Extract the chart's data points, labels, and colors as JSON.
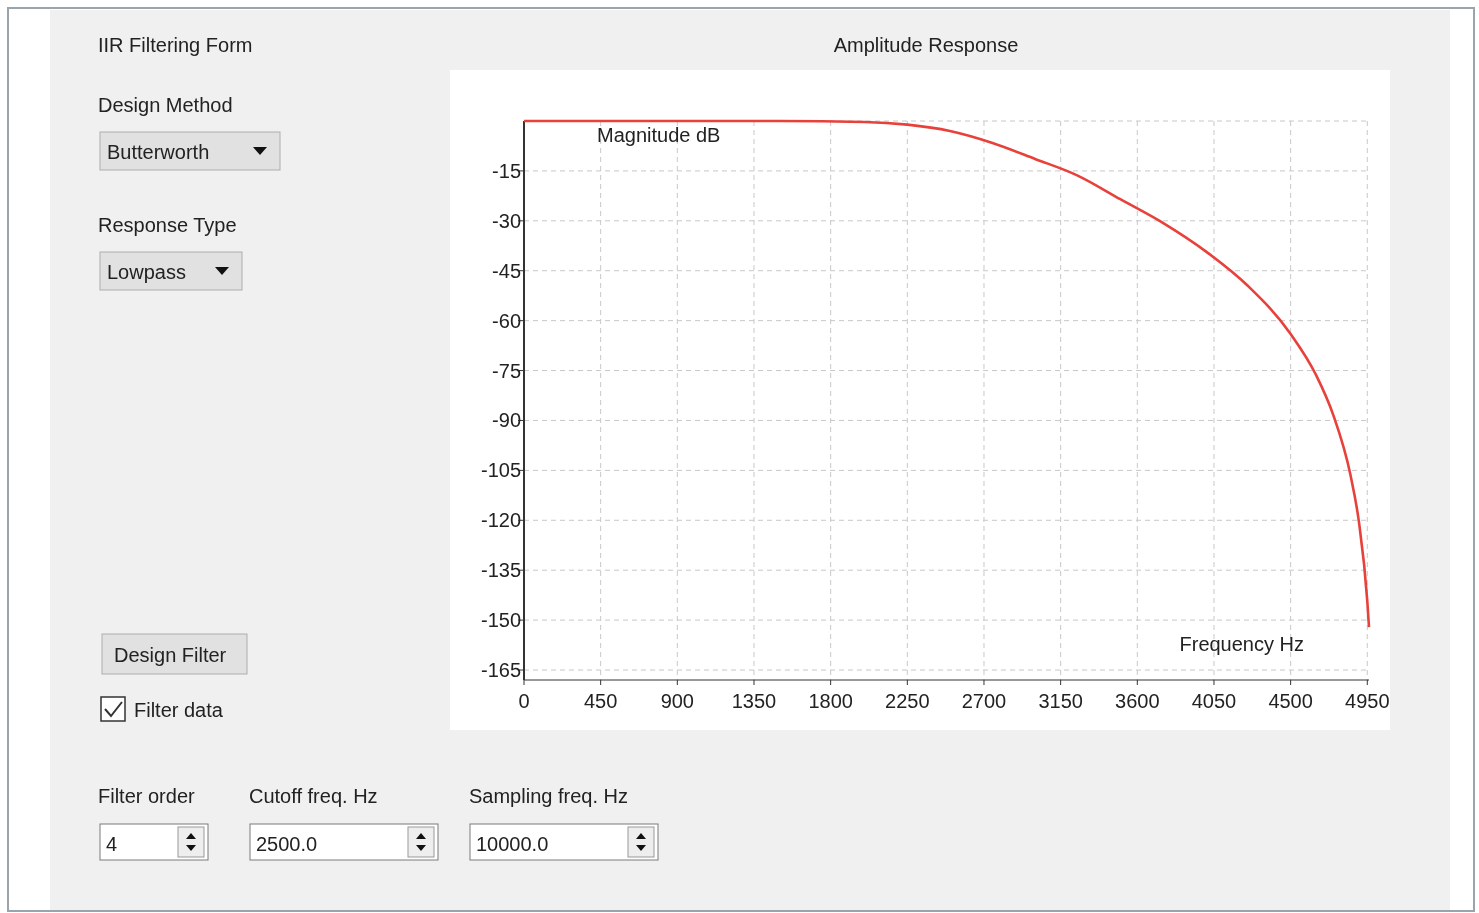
{
  "chart_data": {
    "type": "line",
    "title": "Amplitude Response",
    "xlabel": "Frequency Hz",
    "ylabel": "Magnitude dB",
    "annotations": [
      "IIR Filtering Form",
      "Design Method",
      "Butterworth",
      "Response Type",
      "Lowpass",
      "Design Filter",
      "Filter data",
      "Filter order",
      "4",
      "Cutoff freq. Hz",
      "2500.0",
      "Sampling freq. Hz",
      "10000.0"
    ],
    "series": [
      {
        "color": "#e8413a",
        "x": [
          0,
          1000,
          1500,
          2000,
          2250,
          2500,
          2750,
          3000,
          3250,
          3500,
          3750,
          4000,
          4250,
          4500,
          4650,
          4750,
          4850,
          4900,
          4950,
          4960
        ],
        "values": [
          0,
          0,
          0,
          -0.3,
          -1.1,
          -3.0,
          -6.6,
          -11.4,
          -16.4,
          -23.5,
          -30.6,
          -39.1,
          -49.6,
          -64.0,
          -76.4,
          -88.3,
          -106.1,
          -120.2,
          -144.3,
          -152.1
        ]
      }
    ],
    "xlim": [
      0,
      4960
    ],
    "ylim": [
      -168,
      0
    ],
    "xticks": [
      0,
      450,
      900,
      1350,
      1800,
      2250,
      2700,
      3150,
      3600,
      4050,
      4500,
      4950
    ],
    "yticks": [
      -15,
      -30,
      -45,
      -60,
      -75,
      -90,
      -105,
      -120,
      -135,
      -150,
      -165
    ],
    "grid": true,
    "marker": "none",
    "line_style": "solid"
  }
}
